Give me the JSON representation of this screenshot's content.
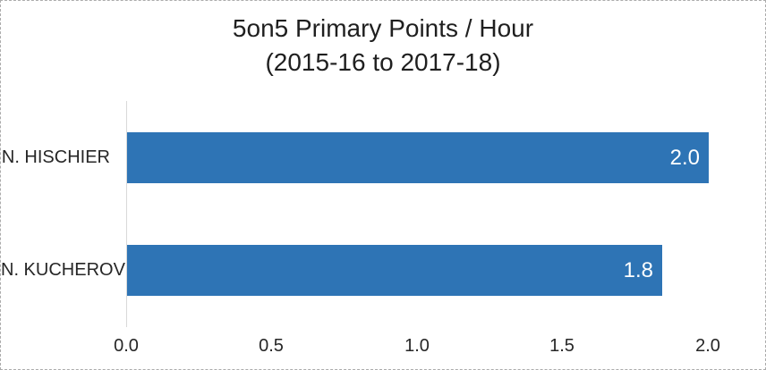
{
  "chart_data": {
    "type": "bar",
    "orientation": "horizontal",
    "title": "5on5 Primary Points / Hour",
    "subtitle": "(2015-16 to 2017-18)",
    "categories": [
      "N. HISCHIER",
      "N. KUCHEROV"
    ],
    "values": [
      2.0,
      1.84
    ],
    "value_labels": [
      "2.0",
      "1.8"
    ],
    "xlim": [
      0,
      2.0
    ],
    "x_ticks": [
      "0.0",
      "0.5",
      "1.0",
      "1.5",
      "2.0"
    ],
    "grid": false,
    "legend": "none",
    "bar_color": "#2e74b5",
    "axis_line_color": "#d9d9d9",
    "text_color": "#262626",
    "value_label_color": "#ffffff",
    "frame_border_color": "#ababab"
  }
}
